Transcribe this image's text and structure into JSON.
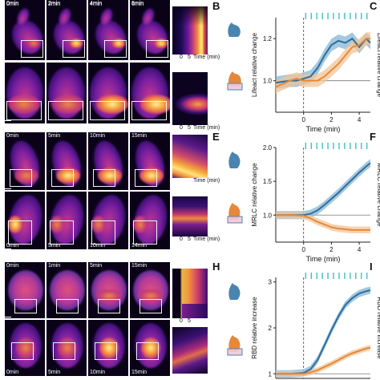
{
  "panel_letters": {
    "b": "B",
    "c": "C",
    "e": "E",
    "f": "F",
    "h": "H",
    "i": "I"
  },
  "row1": {
    "top_times": [
      "0min",
      "2min",
      "4min",
      "6min"
    ]
  },
  "row2": {
    "top_times": [
      "0min",
      "5min",
      "10min",
      "15min"
    ],
    "bottom_times": [
      "0min",
      "5min",
      "10min",
      "14min"
    ]
  },
  "row3": {
    "top_times": [
      "0min",
      "1min",
      "5min",
      "15min"
    ],
    "bottom_times": [
      "0min",
      "5min",
      "10min",
      "15min"
    ]
  },
  "kymographs": {
    "k1_axis": {
      "t0": "0",
      "t5": "5",
      "label": "Time (min)"
    },
    "k2_axis": {
      "t0": "0",
      "t5": "5",
      "label": "Time (min)"
    },
    "k3_axis": {
      "t0": "0",
      "t5": "5",
      "label": "Time (min)"
    },
    "k4_axis": {
      "t0": "0",
      "t5": "5",
      "label": "Time (min)"
    },
    "k5_axis": {
      "t0": "0",
      "t5": "5"
    }
  },
  "colors": {
    "blue": "#2c6e9b",
    "blue_band": "#86b5d6",
    "orange": "#e6883a",
    "orange_band": "#f3c496",
    "ticks": "#3fbfc4",
    "cell": "#4a85b0"
  },
  "chart_data": [
    {
      "type": "line",
      "panel": "C",
      "xlabel": "Time (min)",
      "ylabel": "Lifeact relative change",
      "xlim": [
        -2,
        4.8
      ],
      "ylim": [
        0.85,
        1.3
      ],
      "xticks": [
        "0",
        "2",
        "4"
      ],
      "yticks": [
        "1.0",
        "1.2"
      ],
      "reference_line": 1.0,
      "stimulus_ticks": [
        0.15,
        0.55,
        0.95,
        1.35,
        1.75,
        2.15,
        2.55,
        2.95,
        3.35,
        3.75,
        4.15,
        4.55
      ],
      "series": [
        {
          "x": [
            -2.0,
            -1.0,
            -0.5,
            0.0,
            0.5,
            1.0,
            1.5,
            2.0,
            2.5,
            3.0,
            3.5,
            4.0,
            4.5,
            4.8
          ],
          "y": [
            0.99,
            1.0,
            1.0,
            1.01,
            1.02,
            1.06,
            1.12,
            1.17,
            1.19,
            1.18,
            1.2,
            1.16,
            1.2,
            1.18
          ],
          "band": 0.03
        },
        {
          "x": [
            -2.0,
            -1.0,
            -0.5,
            0.0,
            0.5,
            1.0,
            1.5,
            2.0,
            2.5,
            3.0,
            3.5,
            4.0,
            4.5,
            4.8
          ],
          "y": [
            0.97,
            1.0,
            1.01,
            1.0,
            1.0,
            1.0,
            1.02,
            1.05,
            1.08,
            1.12,
            1.16,
            1.17,
            1.2,
            1.2
          ],
          "band": 0.03
        }
      ]
    },
    {
      "type": "line",
      "panel": "F",
      "xlabel": "Time (min)",
      "ylabel": "MRLC relative change",
      "xlim": [
        -2,
        4.8
      ],
      "ylim": [
        0.6,
        2.0
      ],
      "xticks": [
        "0",
        "2",
        "4"
      ],
      "yticks": [
        "1.0",
        "1.5",
        "2.0"
      ],
      "reference_line": 1.0,
      "stimulus_ticks": [
        0.15,
        0.55,
        0.95,
        1.35,
        1.75,
        2.15,
        2.55,
        2.95,
        3.35,
        3.75,
        4.15,
        4.55
      ],
      "series": [
        {
          "x": [
            -2.0,
            -1.0,
            0.0,
            0.5,
            1.0,
            1.5,
            2.0,
            2.5,
            3.0,
            3.5,
            4.0,
            4.5,
            4.8
          ],
          "y": [
            1.0,
            1.0,
            1.0,
            1.02,
            1.07,
            1.15,
            1.24,
            1.33,
            1.43,
            1.53,
            1.63,
            1.72,
            1.77
          ],
          "band": 0.06
        },
        {
          "x": [
            -2.0,
            -1.0,
            0.0,
            0.5,
            1.0,
            1.5,
            2.0,
            2.5,
            3.0,
            3.5,
            4.0,
            4.5,
            4.8
          ],
          "y": [
            1.0,
            1.0,
            0.99,
            0.95,
            0.9,
            0.86,
            0.82,
            0.8,
            0.79,
            0.78,
            0.78,
            0.78,
            0.78
          ],
          "band": 0.05
        }
      ]
    },
    {
      "type": "line",
      "panel": "I",
      "xlabel": "",
      "ylabel": "RBD relative increase",
      "xlim": [
        -2,
        4.8
      ],
      "ylim": [
        0.9,
        3.1
      ],
      "xticks": [],
      "yticks": [
        "1",
        "2",
        "3"
      ],
      "reference_line": 1.0,
      "stimulus_ticks": [
        0.15,
        0.55,
        0.95,
        1.35,
        1.75,
        2.15,
        2.55,
        2.95,
        3.35,
        3.75,
        4.15,
        4.55
      ],
      "series": [
        {
          "x": [
            -2.0,
            -1.0,
            0.0,
            0.5,
            1.0,
            1.5,
            2.0,
            2.5,
            3.0,
            3.5,
            4.0,
            4.5,
            4.8
          ],
          "y": [
            1.0,
            1.0,
            1.02,
            1.1,
            1.3,
            1.62,
            1.95,
            2.25,
            2.5,
            2.65,
            2.75,
            2.8,
            2.82
          ],
          "band": 0.08
        },
        {
          "x": [
            -2.0,
            -1.0,
            0.0,
            0.5,
            1.0,
            1.5,
            2.0,
            2.5,
            3.0,
            3.5,
            4.0,
            4.5,
            4.8
          ],
          "y": [
            1.0,
            1.0,
            1.0,
            1.03,
            1.08,
            1.15,
            1.22,
            1.3,
            1.38,
            1.45,
            1.5,
            1.55,
            1.57
          ],
          "band": 0.06
        }
      ]
    }
  ]
}
